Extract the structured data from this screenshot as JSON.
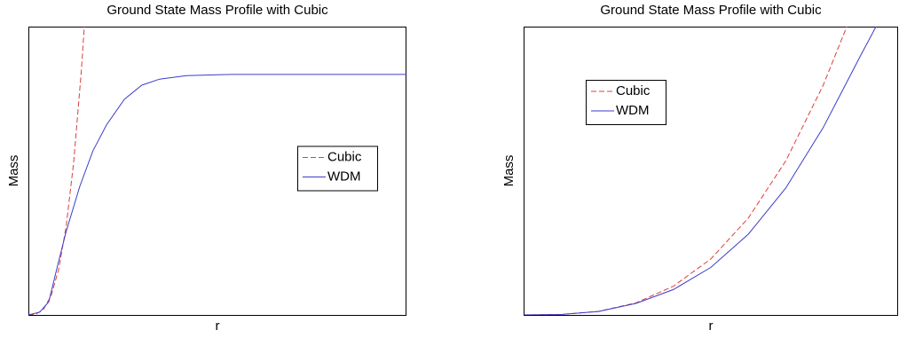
{
  "chart_data": [
    {
      "type": "line",
      "title": "Ground State Mass Profile with Cubic",
      "x_label": "r",
      "y_label": "Mass",
      "xlim": [
        0,
        1
      ],
      "ylim": [
        0,
        1
      ],
      "legend": "right",
      "series": [
        {
          "name": "Cubic",
          "color": "#e03c3c",
          "linestyle": "dashed",
          "x": [
            0,
            0.02,
            0.04,
            0.06,
            0.08,
            0.1,
            0.12,
            0.14,
            0.148
          ],
          "values": [
            0,
            0.0025,
            0.0197,
            0.0665,
            0.158,
            0.308,
            0.532,
            0.845,
            1.0
          ]
        },
        {
          "name": "WDM",
          "color": "#3c3cc8",
          "linestyle": "solid",
          "x": [
            0,
            0.03,
            0.054,
            0.077,
            0.1,
            0.136,
            0.171,
            0.207,
            0.254,
            0.3,
            0.347,
            0.418,
            0.535,
            1.0
          ],
          "values": [
            0,
            0.01,
            0.046,
            0.17,
            0.29,
            0.446,
            0.57,
            0.66,
            0.748,
            0.797,
            0.818,
            0.83,
            0.834,
            0.834
          ]
        }
      ]
    },
    {
      "type": "line",
      "title": "Ground State Mass Profile with Cubic",
      "x_label": "r",
      "y_label": "Mass",
      "xlim": [
        0,
        1
      ],
      "ylim": [
        0,
        1
      ],
      "legend": "upper left",
      "series": [
        {
          "name": "Cubic",
          "color": "#e03c3c",
          "linestyle": "dashed",
          "x": [
            0,
            0.1,
            0.2,
            0.3,
            0.4,
            0.5,
            0.6,
            0.7,
            0.8,
            0.863
          ],
          "values": [
            0,
            0.0016,
            0.0124,
            0.042,
            0.0996,
            0.194,
            0.336,
            0.534,
            0.797,
            1.0
          ]
        },
        {
          "name": "WDM",
          "color": "#3c3cc8",
          "linestyle": "solid",
          "x": [
            0,
            0.1,
            0.2,
            0.3,
            0.4,
            0.5,
            0.6,
            0.7,
            0.8,
            0.9,
            0.941
          ],
          "values": [
            0,
            0.0014,
            0.012,
            0.04,
            0.088,
            0.165,
            0.28,
            0.44,
            0.65,
            0.9,
            1.0
          ]
        }
      ]
    }
  ]
}
